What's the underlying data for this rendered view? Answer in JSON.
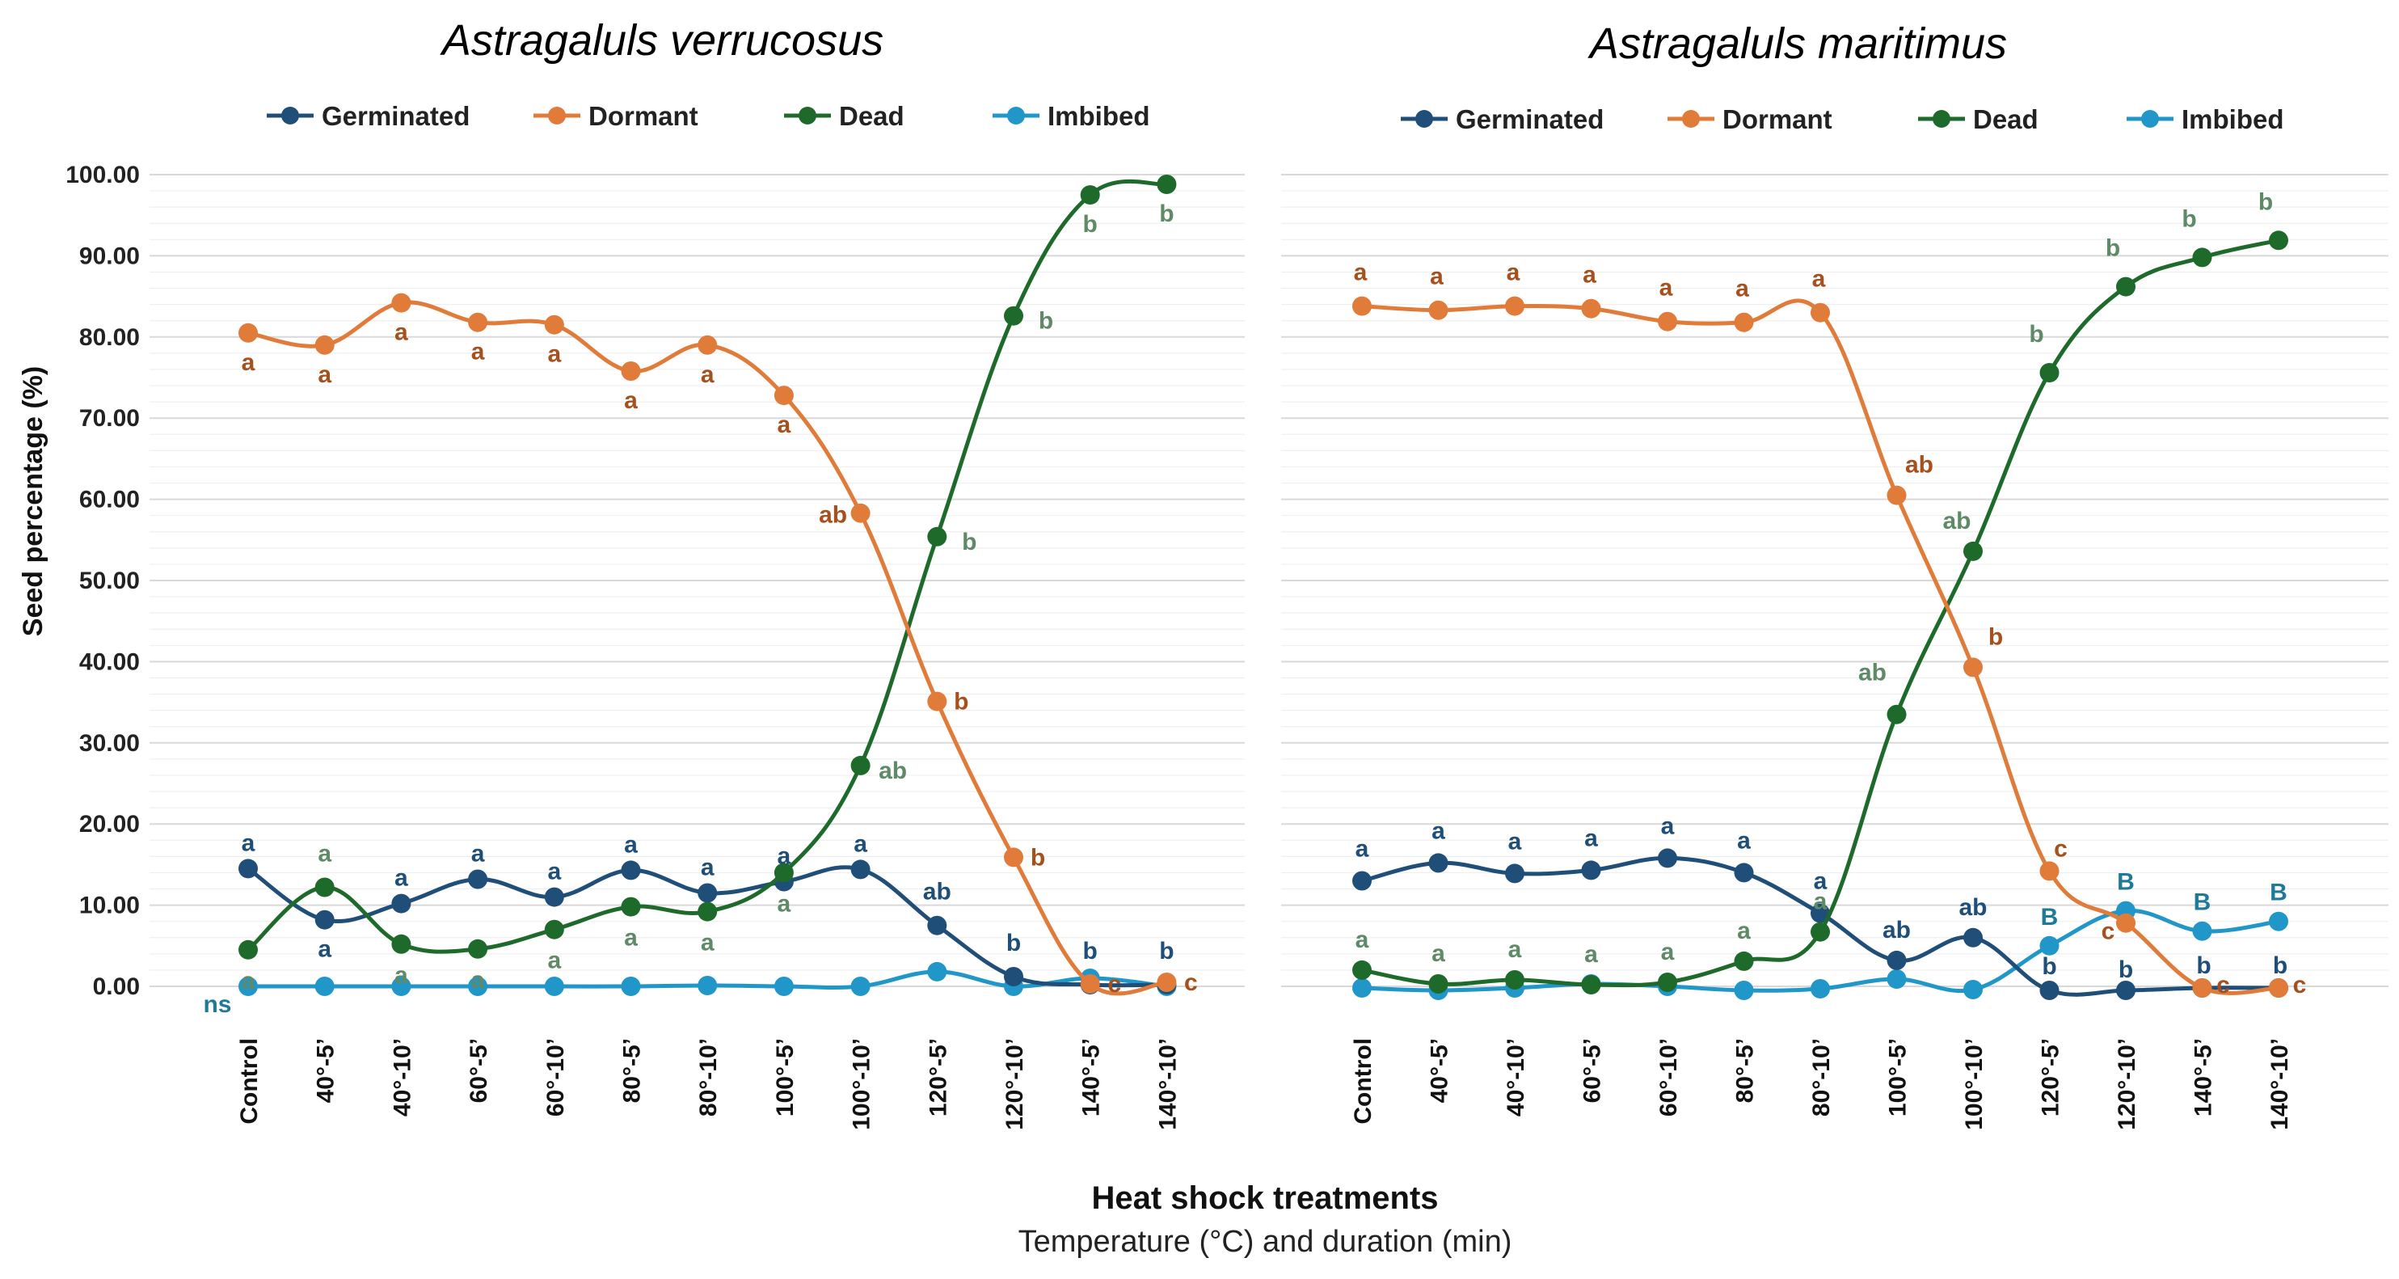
{
  "colors": {
    "germinated": "#1F4E79",
    "dormant": "#E07B39",
    "dead": "#1E6A2B",
    "imbibed": "#2196C9",
    "germinated_label": "#1F4E79",
    "dormant_label": "#A6501E",
    "dead_label": "#5E8A68",
    "imbibed_label": "#1F7A9A",
    "grid": "#E3E3E3"
  },
  "legend": [
    "Germinated",
    "Dormant",
    "Dead",
    "Imbibed"
  ],
  "xlabel": "Heat shock treatments",
  "xsublabel": "Temperature (°C) and duration (min)",
  "chart_data": [
    {
      "type": "line",
      "title": "Astragaluls verrucosus",
      "ylabel": "Seed percentage (%)",
      "ylim": [
        0,
        100
      ],
      "yticks": [
        "0.00",
        "10.00",
        "20.00",
        "30.00",
        "40.00",
        "50.00",
        "60.00",
        "70.00",
        "80.00",
        "90.00",
        "100.00"
      ],
      "categories": [
        "Control",
        "40°-5’",
        "40°-10’",
        "60°-5’",
        "60°-10’",
        "80°-5’",
        "80°-10’",
        "100°-5’",
        "100°-10’",
        "120°-5’",
        "120°-10’",
        "140°-5’",
        "140°-10’"
      ],
      "series": [
        {
          "name": "Germinated",
          "key": "germinated",
          "values": [
            14.5,
            8.2,
            10.2,
            13.2,
            11.0,
            14.3,
            11.5,
            12.9,
            14.4,
            7.5,
            1.2,
            0.2,
            0.2
          ],
          "labels": [
            "a",
            "a",
            "a",
            "a",
            "a",
            "a",
            "a",
            "a",
            "a",
            "ab",
            "b",
            "b",
            "b"
          ]
        },
        {
          "name": "Dormant",
          "key": "dormant",
          "values": [
            80.5,
            79.0,
            84.2,
            81.8,
            81.5,
            75.8,
            79.0,
            72.8,
            58.3,
            35.1,
            15.9,
            0.3,
            0.5
          ],
          "labels": [
            "a",
            "a",
            "a",
            "a",
            "a",
            "a",
            "a",
            "a",
            "ab",
            "b",
            "b",
            "c",
            "c"
          ]
        },
        {
          "name": "Dead",
          "key": "dead",
          "values": [
            4.5,
            12.2,
            5.2,
            4.6,
            7.0,
            9.8,
            9.2,
            14.0,
            27.2,
            55.4,
            82.6,
            97.5,
            98.8
          ],
          "labels": [
            "a",
            "a",
            "a",
            "a",
            "a",
            "a",
            "a",
            "a",
            "ab",
            "b",
            "b",
            "b",
            "b"
          ]
        },
        {
          "name": "Imbibed",
          "key": "imbibed",
          "values": [
            0.0,
            0.0,
            0.0,
            0.0,
            0.0,
            0.0,
            0.1,
            0.0,
            0.0,
            1.8,
            0.0,
            1.0,
            0.0
          ],
          "labels": [
            "ns"
          ]
        }
      ]
    },
    {
      "type": "line",
      "title": "Astragaluls maritimus",
      "ylim": [
        0,
        100
      ],
      "categories": [
        "Control",
        "40°-5’",
        "40°-10’",
        "60°-5’",
        "60°-10’",
        "80°-5’",
        "80°-10’",
        "100°-5’",
        "100°-10’",
        "120°-5’",
        "120°-10’",
        "140°-5’",
        "140°-10’"
      ],
      "series": [
        {
          "name": "Germinated",
          "key": "germinated",
          "values": [
            13.0,
            15.2,
            13.9,
            14.3,
            15.8,
            14.0,
            9.0,
            3.2,
            6.0,
            -0.5,
            -0.5,
            -0.2,
            -0.2
          ],
          "labels": [
            "a",
            "a",
            "a",
            "a",
            "a",
            "a",
            "a",
            "ab",
            "ab",
            "b",
            "b",
            "b",
            "b"
          ]
        },
        {
          "name": "Dormant",
          "key": "dormant",
          "values": [
            83.8,
            83.3,
            83.8,
            83.5,
            81.9,
            81.8,
            83.0,
            60.5,
            39.3,
            14.2,
            7.8,
            -0.2,
            -0.2
          ],
          "labels": [
            "a",
            "a",
            "a",
            "a",
            "a",
            "a",
            "a",
            "ab",
            "b",
            "c",
            "c",
            "c",
            "c"
          ]
        },
        {
          "name": "Dead",
          "key": "dead",
          "values": [
            2.0,
            0.3,
            0.8,
            0.2,
            0.5,
            3.1,
            6.7,
            33.5,
            53.6,
            75.6,
            86.2,
            89.8,
            91.9
          ],
          "labels": [
            "a",
            "a",
            "a",
            "a",
            "a",
            "a",
            "a",
            "ab",
            "ab",
            "b",
            "b",
            "b",
            "b"
          ]
        },
        {
          "name": "Imbibed",
          "key": "imbibed",
          "values": [
            -0.2,
            -0.5,
            -0.2,
            0.3,
            -0.0,
            -0.5,
            -0.3,
            0.9,
            -0.4,
            5.0,
            9.3,
            6.8,
            8.0
          ],
          "labels": [
            "",
            "",
            "",
            "",
            "",
            "",
            "",
            "",
            "",
            "B",
            "B",
            "B",
            "B"
          ]
        }
      ]
    }
  ]
}
